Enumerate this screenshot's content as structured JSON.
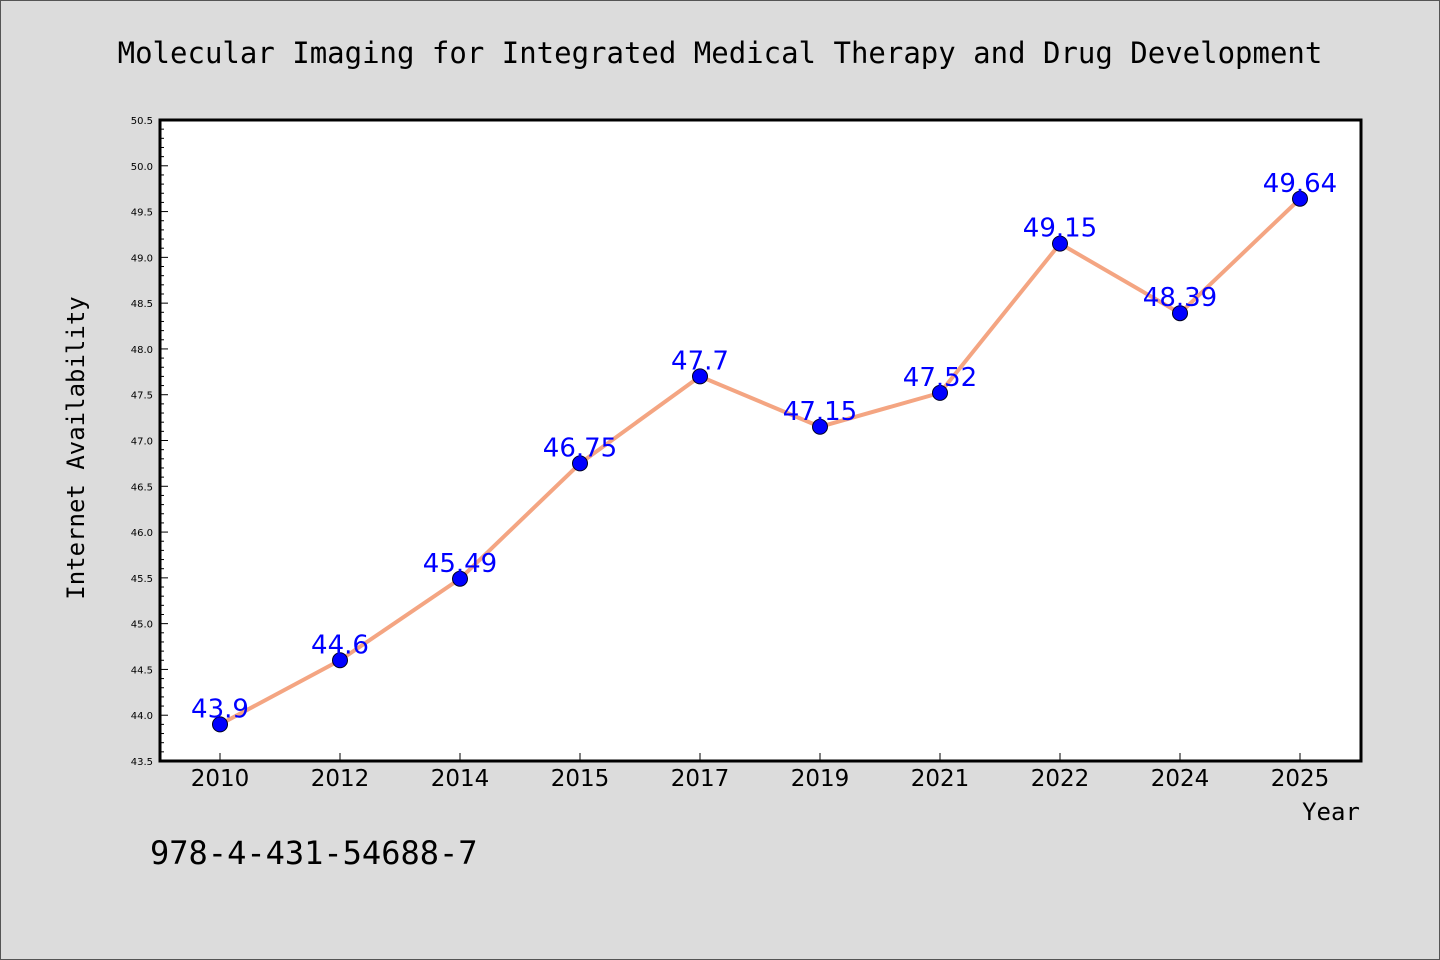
{
  "chart_data": {
    "type": "line",
    "title": "Molecular Imaging for Integrated Medical Therapy and Drug Development",
    "xlabel": "Year",
    "ylabel": "Internet Availability",
    "categories": [
      "2010",
      "2012",
      "2014",
      "2015",
      "2017",
      "2019",
      "2021",
      "2022",
      "2024",
      "2025"
    ],
    "values": [
      43.9,
      44.6,
      45.49,
      46.75,
      47.7,
      47.15,
      47.52,
      49.15,
      48.39,
      49.64
    ],
    "data_labels": [
      "43.9",
      "44.6",
      "45.49",
      "46.75",
      "47.7",
      "47.15",
      "47.52",
      "49.15",
      "48.39",
      "49.64"
    ],
    "ylim": [
      43.5,
      50.5
    ],
    "yticks": [
      "43.5",
      "44.0",
      "44.5",
      "45.0",
      "45.5",
      "46.0",
      "46.5",
      "47.0",
      "47.5",
      "48.0",
      "48.5",
      "49.0",
      "49.5",
      "50.0",
      "50.5"
    ],
    "grid": false,
    "line_color": "#f4a582",
    "marker_color": "#0000ff",
    "label_color": "#0000ff",
    "background_color": "#dcdcdc",
    "plot_background_color": "#ffffff"
  },
  "footer": {
    "isbn": "978-4-431-54688-7"
  }
}
